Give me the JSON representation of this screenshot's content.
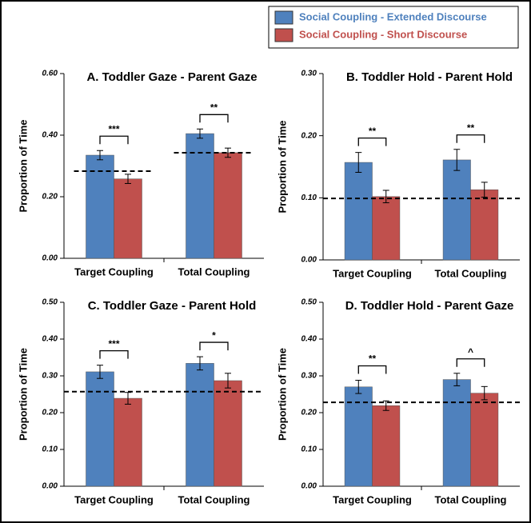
{
  "chart_data": [
    {
      "type": "bar",
      "title": "A. Toddler Gaze - Parent Gaze",
      "ylabel": "Proportion of Time",
      "categories": [
        "Target Coupling",
        "Total Coupling"
      ],
      "series": [
        {
          "name": "Social Coupling - Extended Discourse",
          "color": "#4f81bd",
          "values": [
            0.335,
            0.405
          ],
          "errors": [
            0.015,
            0.015
          ]
        },
        {
          "name": "Social Coupling - Short Discourse",
          "color": "#c0504d",
          "values": [
            0.258,
            0.343
          ],
          "errors": [
            0.015,
            0.015
          ]
        }
      ],
      "reference_values": [
        0.283,
        0.343
      ],
      "significance": [
        "***",
        "**"
      ],
      "ylim": [
        0,
        0.6
      ],
      "yticks": [
        {
          "value": 0,
          "label": "0.00"
        },
        {
          "value": 0.2,
          "label": "0.20"
        },
        {
          "value": 0.4,
          "label": "0.40"
        },
        {
          "value": 0.6,
          "label": "0.60"
        }
      ]
    },
    {
      "type": "bar",
      "title": "B. Toddler Hold - Parent Hold",
      "ylabel": "Proportion of Time",
      "categories": [
        "Target Coupling",
        "Total Coupling"
      ],
      "series": [
        {
          "color": "#4f81bd",
          "values": [
            0.157,
            0.161
          ],
          "errors": [
            0.016,
            0.017
          ]
        },
        {
          "color": "#c0504d",
          "values": [
            0.102,
            0.113
          ],
          "errors": [
            0.01,
            0.012
          ]
        }
      ],
      "reference_line": 0.099,
      "significance": [
        "**",
        "**"
      ],
      "ylim": [
        0,
        0.3
      ],
      "yticks": [
        {
          "value": 0,
          "label": "0.00"
        },
        {
          "value": 0.1,
          "label": "0.10"
        },
        {
          "value": 0.2,
          "label": "0.20"
        },
        {
          "value": 0.3,
          "label": "0.30"
        }
      ]
    },
    {
      "type": "bar",
      "title": "C. Toddler Gaze - Parent Hold",
      "ylabel": "Proportion of Time",
      "categories": [
        "Target Coupling",
        "Total Coupling"
      ],
      "series": [
        {
          "color": "#4f81bd",
          "values": [
            0.311,
            0.334
          ],
          "errors": [
            0.018,
            0.018
          ]
        },
        {
          "color": "#c0504d",
          "values": [
            0.239,
            0.287
          ],
          "errors": [
            0.016,
            0.02
          ]
        }
      ],
      "reference_line": 0.257,
      "significance": [
        "***",
        "*"
      ],
      "ylim": [
        0,
        0.5
      ],
      "yticks": [
        {
          "value": 0,
          "label": "0.00"
        },
        {
          "value": 0.1,
          "label": "0.10"
        },
        {
          "value": 0.2,
          "label": "0.20"
        },
        {
          "value": 0.3,
          "label": "0.30"
        },
        {
          "value": 0.4,
          "label": "0.40"
        },
        {
          "value": 0.5,
          "label": "0.50"
        }
      ]
    },
    {
      "type": "bar",
      "title": "D. Toddler Hold - Parent Gaze",
      "ylabel": "Proportion of Time",
      "categories": [
        "Target Coupling",
        "Total Coupling"
      ],
      "series": [
        {
          "color": "#4f81bd",
          "values": [
            0.27,
            0.29
          ],
          "errors": [
            0.018,
            0.017
          ]
        },
        {
          "color": "#c0504d",
          "values": [
            0.219,
            0.253
          ],
          "errors": [
            0.013,
            0.018
          ]
        }
      ],
      "reference_line": 0.228,
      "significance": [
        "**",
        "^"
      ],
      "ylim": [
        0,
        0.5
      ],
      "yticks": [
        {
          "value": 0,
          "label": "0.00"
        },
        {
          "value": 0.1,
          "label": "0.10"
        },
        {
          "value": 0.2,
          "label": "0.20"
        },
        {
          "value": 0.3,
          "label": "0.30"
        },
        {
          "value": 0.4,
          "label": "0.40"
        },
        {
          "value": 0.5,
          "label": "0.50"
        }
      ]
    }
  ]
}
